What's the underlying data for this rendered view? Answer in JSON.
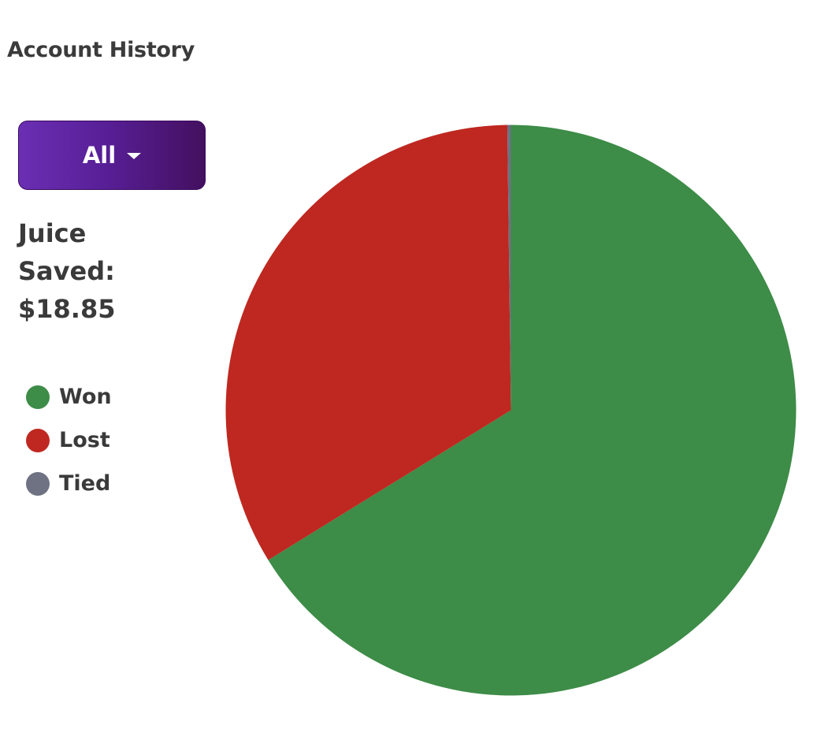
{
  "header": {
    "title": "Account History"
  },
  "filter": {
    "selected": "All"
  },
  "savings": {
    "line1": "Juice",
    "line2": "Saved:",
    "amount": "$18.85"
  },
  "legend": [
    {
      "label": "Won",
      "color": "#3d8c47"
    },
    {
      "label": "Lost",
      "color": "#be2820"
    },
    {
      "label": "Tied",
      "color": "#6e7282"
    }
  ],
  "chart_data": {
    "type": "pie",
    "categories": [
      "Won",
      "Lost",
      "Tied"
    ],
    "values": [
      66.2,
      33.6,
      0.2
    ],
    "colors": [
      "#3d8c47",
      "#be2820",
      "#6e7282"
    ],
    "start_angle": "top, clockwise"
  }
}
